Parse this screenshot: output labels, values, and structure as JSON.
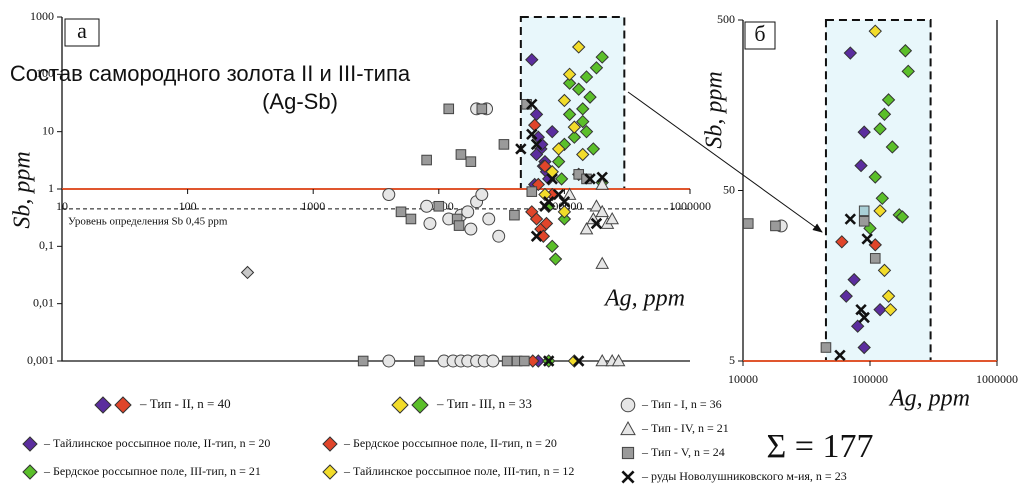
{
  "chart_data": [
    {
      "type": "scatter",
      "panel": "а",
      "title": "Состав самородного золота II и III-типа",
      "subtitle": "(Ag-Sb)",
      "xlabel": "Ag, ppm",
      "ylabel": "Sb, ppm",
      "xlog": true,
      "ylog": true,
      "xlim": [
        10,
        1000000
      ],
      "ylim": [
        0.001,
        1000
      ],
      "xticks": [
        10,
        100,
        1000,
        10000,
        100000,
        1000000
      ],
      "yticks": [
        {
          "value": 0.001,
          "label": "0,001"
        },
        {
          "value": 0.01,
          "label": "0,01"
        },
        {
          "value": 0.1,
          "label": "0,1"
        },
        1,
        10,
        100,
        1000
      ],
      "hline": {
        "value": 1,
        "color": "#e0562e"
      },
      "detection": {
        "value": 0.45,
        "label": "Уровень определения Sb 0,45 ppm"
      },
      "highlight": {
        "x": [
          45000,
          300000
        ],
        "y": [
          1,
          1000
        ],
        "color": "#e8f7fb"
      },
      "total": "Σ = 177",
      "legend_groups": [
        "– Тип - II, n = 40",
        "– Тип - III, n = 33"
      ],
      "series": [
        {
          "name": "– Тайлинское россыпное поле, II-тип, n = 20",
          "marker": "diamond",
          "color": "#5b2d9e",
          "x": [
            55000,
            60000,
            62000,
            65000,
            70000,
            68000,
            72000,
            75000,
            60000,
            80000,
            66000,
            58000,
            62000
          ],
          "values": [
            180,
            20,
            8,
            5,
            3,
            2.5,
            2,
            1.5,
            4,
            10,
            6,
            1.2,
            0.001
          ]
        },
        {
          "name": "– Бердское россыпное поле, II-тип, n = 20",
          "marker": "diamond",
          "color": "#e0452a",
          "x": [
            55000,
            60000,
            65000,
            70000,
            75000,
            80000,
            58000,
            68000,
            72000,
            62000,
            56000
          ],
          "values": [
            0.4,
            0.3,
            0.2,
            2.5,
            0.5,
            0.8,
            13,
            0.15,
            0.25,
            1.2,
            0.001
          ]
        },
        {
          "name": "– Бердское россыпное поле, III-тип, n = 21",
          "marker": "diamond",
          "color": "#5bbf2a",
          "x": [
            200000,
            180000,
            150000,
            130000,
            160000,
            110000,
            140000,
            120000,
            100000,
            170000,
            90000,
            95000,
            200000,
            80000,
            85000,
            100000,
            75000,
            140000,
            110000,
            130000,
            150000,
            75000
          ],
          "values": [
            200,
            130,
            90,
            55,
            40,
            20,
            15,
            8,
            6,
            5,
            3,
            1.5,
            1.3,
            0.1,
            0.06,
            0.3,
            0.5,
            25,
            70,
            1.8,
            10,
            0.001
          ]
        },
        {
          "name": "– Тайлинское россыпное поле, III-тип, n = 12",
          "marker": "diamond",
          "color": "#f2dc2a",
          "x": [
            130000,
            110000,
            100000,
            120000,
            90000,
            80000,
            140000,
            70000,
            100000,
            120000
          ],
          "values": [
            300,
            100,
            35,
            12,
            5,
            2,
            4,
            0.8,
            0.4,
            0.001
          ]
        },
        {
          "name": "– Тип - I, n = 36",
          "marker": "circle",
          "color": "#e6e6e6",
          "x": [
            4000,
            8000,
            12000,
            8500,
            15000,
            17000,
            20000,
            22000,
            25000,
            30000,
            20000,
            24000,
            18000,
            4000,
            11000,
            13000,
            15000,
            17000,
            20000,
            23000,
            27000
          ],
          "values": [
            0.8,
            0.5,
            0.3,
            0.25,
            0.35,
            0.4,
            0.6,
            0.8,
            0.3,
            0.15,
            25,
            25,
            0.2,
            0.001,
            0.001,
            0.001,
            0.001,
            0.001,
            0.001,
            0.001,
            0.001
          ]
        },
        {
          "name": "– Тип - IV, n = 21",
          "marker": "triangle",
          "color": "#e6e6e6",
          "x": [
            200000,
            180000,
            200000,
            170000,
            220000,
            150000,
            240000,
            200000,
            110000,
            200000,
            240000,
            270000
          ],
          "values": [
            1.2,
            0.5,
            0.4,
            0.3,
            0.25,
            0.2,
            0.3,
            0.05,
            0.8,
            0.001,
            0.001,
            0.001
          ]
        },
        {
          "name": "– Тип - V, n = 24",
          "marker": "square",
          "color": "#9a9a9a",
          "x": [
            12000,
            22000,
            8000,
            15000,
            18000,
            33000,
            5000,
            6000,
            14000,
            14500,
            10000,
            50000,
            55000,
            40000,
            130000,
            150000,
            2500,
            7000,
            35000,
            42000,
            48000
          ],
          "values": [
            25,
            25,
            3.2,
            4,
            3,
            6,
            0.4,
            0.3,
            0.3,
            0.23,
            0.5,
            30,
            0.9,
            0.35,
            1.8,
            1.5,
            0.001,
            0.001,
            0.001,
            0.001,
            0.001
          ]
        },
        {
          "name": "– руды Новолушниковского м-ия, n = 23",
          "marker": "cross",
          "color": "#111111",
          "x": [
            55000,
            55000,
            60000,
            45000,
            80000,
            90000,
            70000,
            100000,
            160000,
            200000,
            180000,
            60000,
            75000,
            75000,
            130000
          ],
          "values": [
            30,
            9,
            6,
            5,
            1.5,
            0.8,
            0.5,
            0.6,
            1.5,
            1.6,
            0.25,
            0.15,
            0.6,
            0.001,
            0.001
          ]
        },
        {
          "marker": "diamond",
          "color": "#c8c8c8",
          "x": [
            300
          ],
          "values": [
            0.035
          ]
        }
      ]
    },
    {
      "type": "scatter",
      "panel": "б",
      "xlabel": "Ag, ppm",
      "ylabel": "Sb, ppm",
      "xlog": true,
      "ylog": true,
      "xlim": [
        10000,
        1000000
      ],
      "ylim": [
        5,
        500
      ],
      "xticks": [
        10000,
        100000,
        1000000
      ],
      "yticks": [
        5,
        50,
        500
      ],
      "hline": {
        "value": 5,
        "color": "#e0562e"
      },
      "highlight": {
        "x": [
          45000,
          300000
        ],
        "y": [
          5,
          500
        ],
        "color": "#e8f7fb"
      },
      "series": [
        {
          "marker": "diamond",
          "color": "#5b2d9e",
          "x": [
            70000,
            90000,
            85000,
            65000,
            80000,
            90000,
            120000,
            75000
          ],
          "values": [
            320,
            110,
            70,
            12,
            8,
            6,
            10,
            15
          ]
        },
        {
          "marker": "diamond",
          "color": "#e0452a",
          "x": [
            60000,
            110000
          ],
          "values": [
            25,
            24
          ]
        },
        {
          "marker": "diamond",
          "color": "#5bbf2a",
          "x": [
            190000,
            200000,
            140000,
            130000,
            120000,
            150000,
            110000,
            125000,
            170000,
            180000,
            100000
          ],
          "values": [
            330,
            250,
            170,
            140,
            115,
            90,
            60,
            45,
            36,
            35,
            30
          ]
        },
        {
          "marker": "diamond",
          "color": "#f2dc2a",
          "x": [
            110000,
            120000,
            130000,
            140000,
            145000
          ],
          "values": [
            430,
            38,
            17,
            12,
            10
          ]
        },
        {
          "marker": "circle",
          "color": "#e6e6e6",
          "x": [
            20000
          ],
          "values": [
            31
          ]
        },
        {
          "marker": "square",
          "color": "#9a9a9a",
          "x": [
            11000,
            18000,
            45000,
            90000,
            110000
          ],
          "values": [
            32,
            31,
            6,
            33,
            20
          ]
        },
        {
          "marker": "square",
          "color": "#a9cfd6",
          "x": [
            90000
          ],
          "values": [
            38
          ]
        },
        {
          "marker": "cross",
          "color": "#111111",
          "x": [
            70000,
            95000,
            85000,
            90000,
            58000
          ],
          "values": [
            34,
            26,
            10,
            9,
            5.4
          ]
        }
      ]
    }
  ]
}
